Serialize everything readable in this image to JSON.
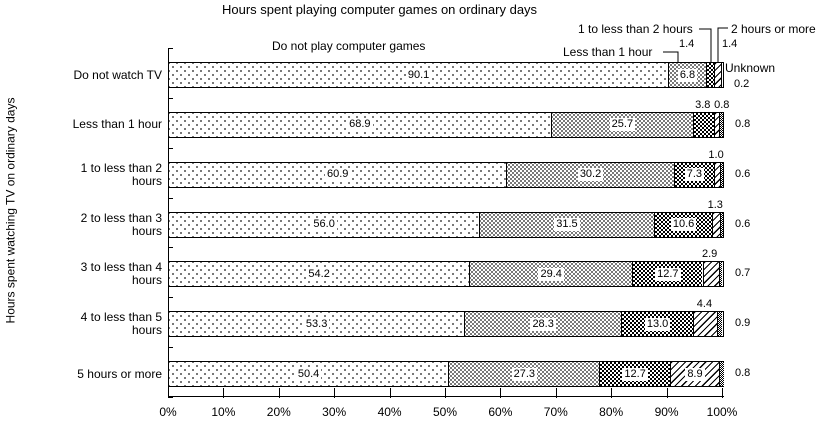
{
  "chart_data": {
    "type": "bar",
    "stacked": true,
    "orientation": "horizontal",
    "title": "Hours spent playing computer games on ordinary days",
    "ylabel": "Hours spent watching TV on ordinary days",
    "xlabel": "",
    "xlim": [
      0,
      100
    ],
    "grid": false,
    "x_ticks": [
      "0%",
      "10%",
      "20%",
      "30%",
      "40%",
      "50%",
      "60%",
      "70%",
      "80%",
      "90%",
      "100%"
    ],
    "categories": [
      "Do not watch TV",
      "Less than 1 hour",
      "1 to less than 2\nhours",
      "2 to less than 3\nhours",
      "3 to less than 4\nhours",
      "4 to less than 5\nhours",
      "5 hours or more"
    ],
    "legend": [
      "Do not play computer games",
      "Less than 1 hour",
      "1 to less than 2 hours",
      "2 hours or more",
      "Unknown"
    ],
    "legend_patterns": [
      "sparse-dots",
      "dense-dots",
      "checkerboard",
      "diagonal-stripes",
      "fine-checker"
    ],
    "series": [
      {
        "name": "Do not play computer games",
        "values": [
          90.1,
          68.9,
          60.9,
          56.0,
          54.2,
          53.3,
          50.4
        ]
      },
      {
        "name": "Less than 1 hour",
        "values": [
          6.8,
          25.7,
          30.2,
          31.5,
          29.4,
          28.3,
          27.3
        ]
      },
      {
        "name": "1 to less than 2 hours",
        "values": [
          1.4,
          3.8,
          7.3,
          10.6,
          12.7,
          13.0,
          12.7
        ]
      },
      {
        "name": "2 hours or more",
        "values": [
          1.4,
          0.8,
          1.0,
          1.3,
          2.9,
          4.4,
          8.9
        ]
      },
      {
        "name": "Unknown",
        "values": [
          0.2,
          0.8,
          0.6,
          0.6,
          0.7,
          0.9,
          0.8
        ]
      }
    ],
    "label_placement": [
      [
        "in",
        "in",
        "custom",
        "custom",
        "custom"
      ],
      [
        "in",
        "in",
        "above",
        "above",
        "right"
      ],
      [
        "in",
        "in",
        "in",
        "above",
        "right"
      ],
      [
        "in",
        "in",
        "in",
        "above",
        "right"
      ],
      [
        "in",
        "in",
        "in",
        "above",
        "right"
      ],
      [
        "in",
        "in",
        "in",
        "above",
        "right"
      ],
      [
        "in",
        "in",
        "in",
        "in",
        "right"
      ]
    ]
  },
  "colors": {
    "foreground": "#000000",
    "background": "#ffffff"
  }
}
